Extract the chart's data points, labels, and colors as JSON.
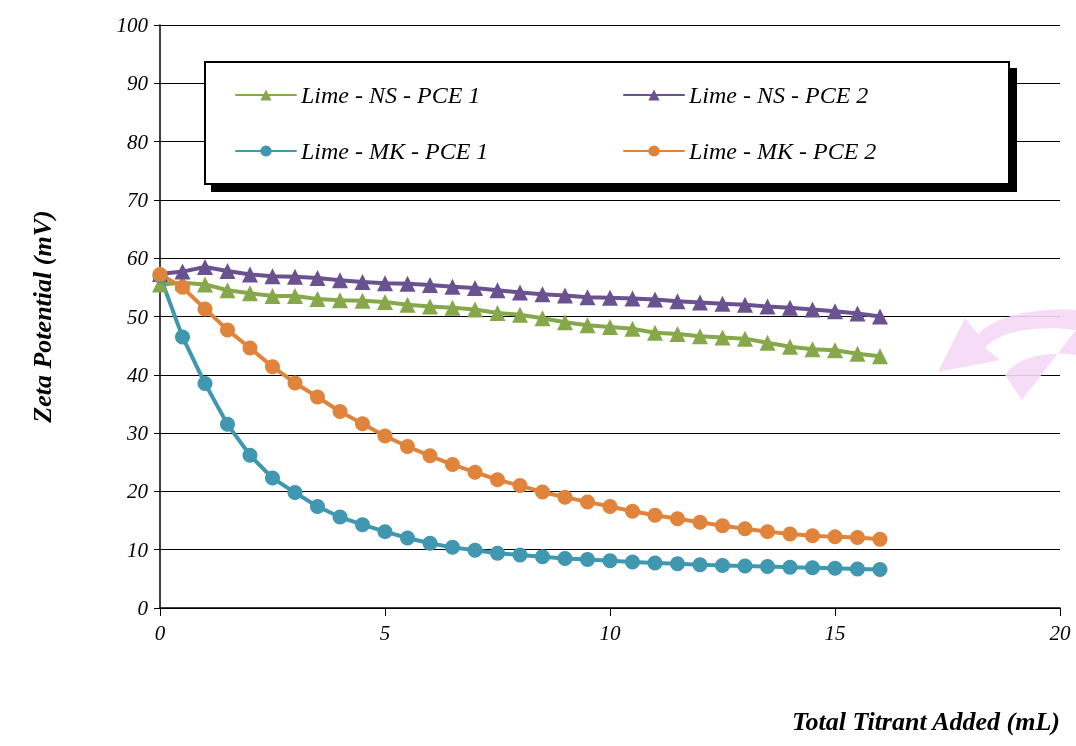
{
  "chart_data": {
    "type": "line",
    "xlabel": "Total Titrant Added (mL)",
    "ylabel": "Zeta Potential (mV)",
    "x": [
      0,
      0.5,
      1,
      1.5,
      2,
      2.5,
      3,
      3.5,
      4,
      4.5,
      5,
      5.5,
      6,
      6.5,
      7,
      7.5,
      8,
      8.5,
      9,
      9.5,
      10,
      10.5,
      11,
      11.5,
      12,
      12.5,
      13,
      13.5,
      14,
      14.5,
      15,
      15.5,
      16
    ],
    "series": [
      {
        "name": "Lime - NS - PCE 1",
        "color": "#86a84a",
        "marker": "triangle",
        "values": [
          55.5,
          55.8,
          55.5,
          54.5,
          54.0,
          53.5,
          53.5,
          53.0,
          52.8,
          52.7,
          52.5,
          52.0,
          51.7,
          51.5,
          51.2,
          50.6,
          50.3,
          49.7,
          49.0,
          48.5,
          48.2,
          47.9,
          47.2,
          47.0,
          46.6,
          46.4,
          46.2,
          45.5,
          44.8,
          44.4,
          44.2,
          43.6,
          43.2
        ]
      },
      {
        "name": "Lime - NS - PCE 2",
        "color": "#6a5190",
        "marker": "triangle",
        "values": [
          57.3,
          57.7,
          58.5,
          57.8,
          57.2,
          56.9,
          56.8,
          56.6,
          56.2,
          55.9,
          55.7,
          55.6,
          55.4,
          55.1,
          54.9,
          54.5,
          54.1,
          53.8,
          53.6,
          53.3,
          53.2,
          53.1,
          52.9,
          52.6,
          52.4,
          52.2,
          52.0,
          51.7,
          51.5,
          51.2,
          50.9,
          50.5,
          50.0
        ]
      },
      {
        "name": "Lime - MK - PCE 1",
        "color": "#3f97b0",
        "marker": "circle",
        "values": [
          57.0,
          46.5,
          38.5,
          31.5,
          26.2,
          22.3,
          19.8,
          17.4,
          15.6,
          14.3,
          13.1,
          12.0,
          11.1,
          10.4,
          9.9,
          9.4,
          9.1,
          8.8,
          8.5,
          8.3,
          8.1,
          7.9,
          7.7,
          7.6,
          7.4,
          7.3,
          7.2,
          7.1,
          7.0,
          6.9,
          6.8,
          6.7,
          6.6
        ]
      },
      {
        "name": "Lime - MK - PCE 2",
        "color": "#e0843b",
        "marker": "circle",
        "values": [
          57.2,
          55.0,
          51.3,
          47.7,
          44.6,
          41.4,
          38.6,
          36.2,
          33.7,
          31.6,
          29.5,
          27.7,
          26.1,
          24.6,
          23.3,
          22.0,
          21.0,
          19.9,
          19.0,
          18.2,
          17.4,
          16.6,
          15.9,
          15.3,
          14.7,
          14.1,
          13.6,
          13.1,
          12.7,
          12.4,
          12.2,
          12.1,
          11.8
        ]
      }
    ],
    "xlim": [
      0,
      20
    ],
    "xticks": [
      0,
      5,
      10,
      15,
      20
    ],
    "ylim": [
      0,
      100
    ],
    "yticks": [
      0,
      10,
      20,
      30,
      40,
      50,
      60,
      70,
      80,
      90,
      100
    ],
    "grid": "y",
    "legend": "top"
  }
}
